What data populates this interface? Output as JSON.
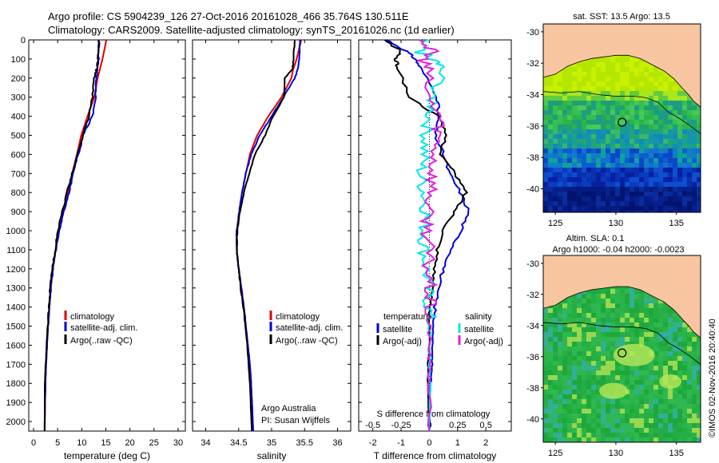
{
  "header": {
    "line1": "Argo profile: CS 5904239_126 27-Oct-2016 20161028_466 35.764S 130.511E",
    "line2": "Climatology: CARS2009. Satellite-adjusted climatology: synTS_20161026.nc (1d earlier)"
  },
  "colors": {
    "climatology": "#e00000",
    "satellite": "#0000dd",
    "argo": "#000000",
    "sat_salinity": "#00e8e8",
    "argo_salinity": "#e020e0",
    "land": "#f7c59f"
  },
  "chart_data": [
    {
      "type": "line",
      "id": "temperature",
      "xlabel": "temperature (deg C)",
      "ylabel": "",
      "xlim": [
        -1,
        31.5
      ],
      "ylim": [
        2050,
        0
      ],
      "xticks": [
        0,
        5,
        10,
        15,
        20,
        25,
        30
      ],
      "yticks": [
        0,
        100,
        200,
        300,
        400,
        500,
        600,
        700,
        800,
        900,
        1000,
        1100,
        1200,
        1300,
        1400,
        1500,
        1600,
        1700,
        1800,
        1900,
        2000
      ],
      "legend": [
        "climatology",
        "satellite-adj. clim.",
        "Argo(..raw -QC)"
      ],
      "series": [
        {
          "name": "climatology",
          "color": "#e00000",
          "x": [
            15.1,
            14.3,
            13.8,
            13.3,
            12.6,
            11.2,
            9.9,
            9.0,
            8.0,
            7.1,
            6.2,
            5.3,
            4.6,
            4.0,
            3.6,
            3.3,
            3.0,
            2.8,
            2.6,
            2.45,
            2.3
          ],
          "y": [
            0,
            100,
            150,
            200,
            300,
            400,
            500,
            600,
            700,
            800,
            900,
            1000,
            1100,
            1200,
            1300,
            1400,
            1500,
            1600,
            1700,
            1800,
            2050
          ]
        },
        {
          "name": "satellite-adj. clim.",
          "color": "#0000dd",
          "x": [
            13.6,
            13.5,
            13.3,
            13.0,
            12.9,
            12.2,
            10.3,
            9.3,
            8.2,
            7.4,
            6.3,
            5.3,
            4.6,
            4.0,
            3.6,
            3.3,
            3.0,
            2.8,
            2.6,
            2.45,
            2.3
          ],
          "y": [
            0,
            100,
            150,
            200,
            300,
            400,
            500,
            600,
            700,
            800,
            900,
            1000,
            1100,
            1200,
            1300,
            1400,
            1500,
            1600,
            1700,
            1800,
            2050
          ]
        },
        {
          "name": "Argo(..raw -QC)",
          "color": "#000000",
          "x": [
            13.5,
            13.4,
            13.1,
            12.6,
            12.2,
            11.5,
            10.2,
            9.1,
            8.0,
            6.9,
            6.0,
            5.0,
            4.5,
            3.9,
            3.5,
            3.2,
            2.9,
            2.7,
            2.5,
            2.35,
            2.3
          ],
          "y": [
            0,
            100,
            150,
            200,
            300,
            400,
            500,
            600,
            700,
            800,
            900,
            1000,
            1100,
            1200,
            1300,
            1400,
            1500,
            1600,
            1700,
            1800,
            2050
          ]
        }
      ]
    },
    {
      "type": "line",
      "id": "salinity",
      "xlabel": "salinity",
      "xlim": [
        33.8,
        36.2
      ],
      "ylim": [
        2050,
        0
      ],
      "xticks": [
        34,
        34.5,
        35,
        35.5,
        36
      ],
      "legend": [
        "climatology",
        "satellite-adj. clim.",
        "Argo(..raw -QC)"
      ],
      "annotation": [
        "Argo Australia",
        "PI: Susan Wijffels"
      ],
      "series": [
        {
          "name": "climatology",
          "color": "#e00000",
          "x": [
            35.45,
            35.38,
            35.33,
            35.3,
            35.15,
            34.95,
            34.78,
            34.67,
            34.61,
            34.55,
            34.51,
            34.47,
            34.47,
            34.5,
            34.54,
            34.58,
            34.61,
            34.64,
            34.67,
            34.69,
            34.72
          ],
          "y": [
            0,
            100,
            150,
            200,
            300,
            400,
            500,
            600,
            700,
            800,
            900,
            1000,
            1100,
            1200,
            1300,
            1400,
            1500,
            1600,
            1700,
            1800,
            2050
          ]
        },
        {
          "name": "satellite-adj. clim.",
          "color": "#0000dd",
          "x": [
            35.43,
            35.42,
            35.4,
            35.35,
            35.18,
            35.0,
            34.82,
            34.69,
            34.61,
            34.55,
            34.51,
            34.47,
            34.47,
            34.5,
            34.54,
            34.58,
            34.61,
            34.64,
            34.67,
            34.69,
            34.72
          ],
          "y": [
            0,
            100,
            150,
            200,
            300,
            400,
            500,
            600,
            700,
            800,
            900,
            1000,
            1100,
            1200,
            1300,
            1400,
            1500,
            1600,
            1700,
            1800,
            2050
          ]
        },
        {
          "name": "Argo(..raw -QC)",
          "color": "#000000",
          "x": [
            35.35,
            35.33,
            35.32,
            35.2,
            35.19,
            35.02,
            34.9,
            34.75,
            34.66,
            34.58,
            34.52,
            34.48,
            34.47,
            34.5,
            34.53,
            34.57,
            34.6,
            34.63,
            34.65,
            34.67,
            34.7
          ],
          "y": [
            0,
            100,
            150,
            200,
            300,
            400,
            500,
            600,
            700,
            800,
            900,
            1000,
            1100,
            1200,
            1300,
            1400,
            1500,
            1600,
            1700,
            1800,
            2050
          ]
        }
      ]
    },
    {
      "type": "line",
      "id": "difference",
      "xlabel": "T difference from climatology",
      "xlabel2": "S difference from climatology",
      "xlim": [
        -2.5,
        2.9
      ],
      "ylim": [
        2050,
        0
      ],
      "xticks": [
        -2,
        -1,
        0,
        1,
        2
      ],
      "sticks": [
        -0.5,
        -0.25,
        0,
        0.25,
        0.5
      ],
      "legend_headers": [
        "temperature",
        "salinity"
      ],
      "legend": [
        "satellite",
        "Argo(-adj)",
        "satellite",
        "Argo(-adj)"
      ],
      "series": [
        {
          "name": "T satellite",
          "color": "#0000dd",
          "x": [
            -1.5,
            -0.8,
            -0.5,
            -0.3,
            0.3,
            0.3,
            0.2,
            0.5,
            0.7,
            1.1,
            1.4,
            1.1,
            0.8,
            0.5,
            0.3,
            0.2,
            0.15,
            0.1,
            0.1,
            0.05,
            0.0
          ],
          "y": [
            0,
            60,
            100,
            150,
            300,
            400,
            500,
            600,
            700,
            800,
            900,
            1000,
            1100,
            1200,
            1300,
            1400,
            1500,
            1600,
            1700,
            1800,
            2050
          ]
        },
        {
          "name": "T Argo(-adj)",
          "color": "#000000",
          "x": [
            -1.6,
            -1.0,
            -1.2,
            -1.1,
            -0.7,
            0.3,
            0.6,
            0.4,
            0.9,
            1.3,
            0.9,
            0.5,
            0.3,
            0.2,
            0.1,
            0.05,
            0.0,
            0.0,
            -0.05,
            -0.05,
            0.0
          ],
          "y": [
            0,
            60,
            100,
            150,
            300,
            400,
            500,
            600,
            700,
            800,
            900,
            1000,
            1100,
            1200,
            1300,
            1400,
            1500,
            1600,
            1700,
            1800,
            2050
          ]
        },
        {
          "name": "S satellite",
          "color": "#00e8e8",
          "x": [
            -0.05,
            -0.1,
            0.05,
            0.1,
            0.05,
            0.0,
            -0.03,
            -0.05,
            -0.08,
            -0.05,
            -0.03,
            -0.05,
            -0.05,
            -0.03,
            -0.02,
            -0.01,
            0.0,
            0.0,
            0.0,
            0.0,
            0.0
          ],
          "y": [
            0,
            60,
            100,
            150,
            300,
            400,
            500,
            600,
            700,
            800,
            900,
            1000,
            1100,
            1200,
            1300,
            1400,
            1500,
            1600,
            1700,
            1800,
            2050
          ]
        },
        {
          "name": "S Argo(-adj)",
          "color": "#e020e0",
          "x": [
            -0.05,
            0.02,
            -0.05,
            -0.02,
            -0.02,
            0.1,
            0.08,
            0.05,
            0.03,
            0.02,
            -0.02,
            -0.01,
            -0.01,
            -0.01,
            0.0,
            0.0,
            0.0,
            0.0,
            0.0,
            0.0,
            0.0
          ],
          "y": [
            0,
            60,
            100,
            150,
            300,
            400,
            500,
            600,
            700,
            800,
            900,
            1000,
            1100,
            1200,
            1300,
            1400,
            1500,
            1600,
            1700,
            1800,
            2050
          ]
        }
      ]
    },
    {
      "type": "heatmap",
      "id": "sst_map",
      "title": "sat. SST: 13.5  Argo: 13.5",
      "xlim": [
        124,
        137
      ],
      "ylim": [
        -41.5,
        -29.5
      ],
      "xticks": [
        125,
        130,
        135
      ],
      "yticks": [
        -30,
        -32,
        -34,
        -36,
        -38,
        -40
      ],
      "marker": {
        "lon": 130.511,
        "lat": -35.764
      }
    },
    {
      "type": "heatmap",
      "id": "sla_map",
      "title": "Altim. SLA: 0.1",
      "subtitle": "Argo h1000: -0.04  h2000: -0.0023",
      "xlim": [
        124,
        137
      ],
      "ylim": [
        -41.5,
        -29.5
      ],
      "xticks": [
        125,
        130,
        135
      ],
      "yticks": [
        -30,
        -32,
        -34,
        -36,
        -38,
        -40
      ],
      "marker": {
        "lon": 130.511,
        "lat": -35.764
      }
    }
  ],
  "footer": {
    "credit": "©IMOS 02-Nov-2016 20:40:40"
  }
}
